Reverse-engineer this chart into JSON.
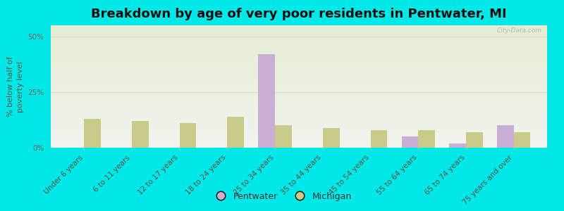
{
  "title": "Breakdown by age of very poor residents in Pentwater, MI",
  "ylabel": "% below half of\npoverty level",
  "categories": [
    "Under 6 years",
    "6 to 11 years",
    "12 to 17 years",
    "18 to 24 years",
    "25 to 34 years",
    "35 to 44 years",
    "45 to 54 years",
    "55 to 64 years",
    "65 to 74 years",
    "75 years and over"
  ],
  "pentwater_values": [
    0,
    0,
    0,
    0,
    42,
    0,
    0,
    5,
    2,
    10
  ],
  "michigan_values": [
    13,
    12,
    11,
    14,
    10,
    9,
    8,
    8,
    7,
    7
  ],
  "pentwater_color": "#c9aed6",
  "michigan_color": "#c8cb8a",
  "background_color": "#00e8e8",
  "plot_bg_top": "#e4edd4",
  "plot_bg_bottom": "#f2f4ee",
  "ylim": [
    0,
    55
  ],
  "yticks": [
    0,
    25,
    50
  ],
  "ytick_labels": [
    "0%",
    "25%",
    "50%"
  ],
  "bar_width": 0.35,
  "title_fontsize": 13,
  "label_fontsize": 8,
  "tick_fontsize": 7.5,
  "watermark": "City-Data.com",
  "grid_color": "#ddddcc",
  "spine_color": "#bbbbaa"
}
